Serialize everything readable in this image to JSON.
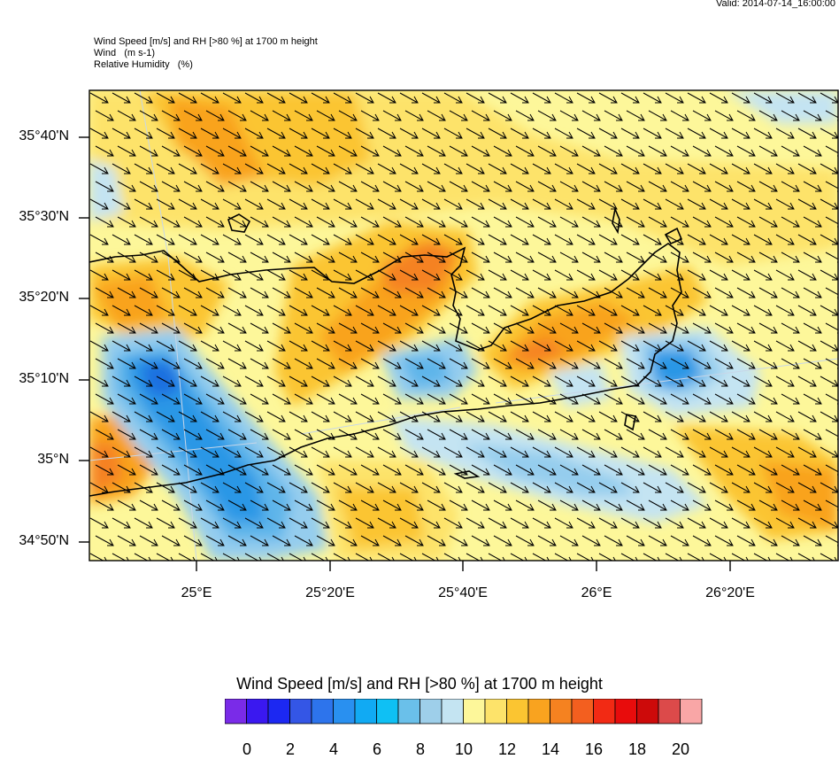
{
  "header": {
    "valid": "Valid: 2014-07-14_16:00:00",
    "title_lines": [
      "Wind Speed [m/s] and RH [>80 %] at 1700 m height",
      "Wind   (m s-1)",
      "Relative Humidity   (%)"
    ]
  },
  "map": {
    "lat_labels": [
      "35°40'N",
      "35°30'N",
      "35°20'N",
      "35°10'N",
      "35°N",
      "34°50'N"
    ],
    "lon_labels": [
      "25°E",
      "25°20'E",
      "25°40'E",
      "26°E",
      "26°20'E"
    ],
    "wind_direction": "northwest",
    "colors": {
      "light_yellow": "#fdf79a",
      "yellow": "#fde36a",
      "gold": "#fbc531",
      "orange": "#f9a31f",
      "dark_orange": "#f58220",
      "light_blue": "#bfe3f4",
      "blue_1": "#95cdee",
      "blue_2": "#5fb5ea",
      "blue_3": "#2a97e6",
      "blue_4": "#1d6fe0"
    }
  },
  "colorbar": {
    "title": "Wind Speed [m/s] and RH [>80 %] at 1700 m height",
    "colors": [
      "#7a2be8",
      "#3a18f0",
      "#1c28f2",
      "#3456e6",
      "#2d74ec",
      "#2990f0",
      "#11aaf3",
      "#0fc0f4",
      "#6ac0ea",
      "#9ecfea",
      "#c4e4f2",
      "#fdf79a",
      "#fde36a",
      "#fbc531",
      "#f9a31f",
      "#f58220",
      "#f35f1f",
      "#f22a14",
      "#e80c0c",
      "#cd0a0a",
      "#dc4a4a",
      "#f9a6a6"
    ],
    "labels": [
      "0",
      "2",
      "4",
      "6",
      "8",
      "10",
      "12",
      "14",
      "16",
      "18",
      "20"
    ]
  }
}
